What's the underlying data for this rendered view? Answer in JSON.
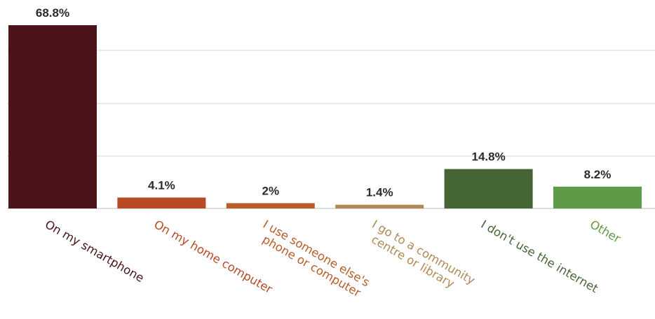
{
  "chart_data": {
    "type": "bar",
    "categories": [
      [
        "On my smartphone"
      ],
      [
        "On my home computer"
      ],
      [
        "I use someone else's",
        "phone or computer"
      ],
      [
        "I go to a community",
        "centre or library"
      ],
      [
        "I don't use the internet"
      ],
      [
        "Other"
      ]
    ],
    "values": [
      68.8,
      4.1,
      2,
      1.4,
      14.8,
      8.2
    ],
    "value_labels": [
      "68.8%",
      "4.1%",
      "2%",
      "1.4%",
      "14.8%",
      "8.2%"
    ],
    "colors": [
      "#4a141a",
      "#b94a25",
      "#b95c2a",
      "#b08a55",
      "#466534",
      "#5f9a48"
    ],
    "title": "",
    "xlabel": "",
    "ylabel": "",
    "ylim": [
      0,
      68.8
    ],
    "grid": true,
    "legend": "none"
  }
}
